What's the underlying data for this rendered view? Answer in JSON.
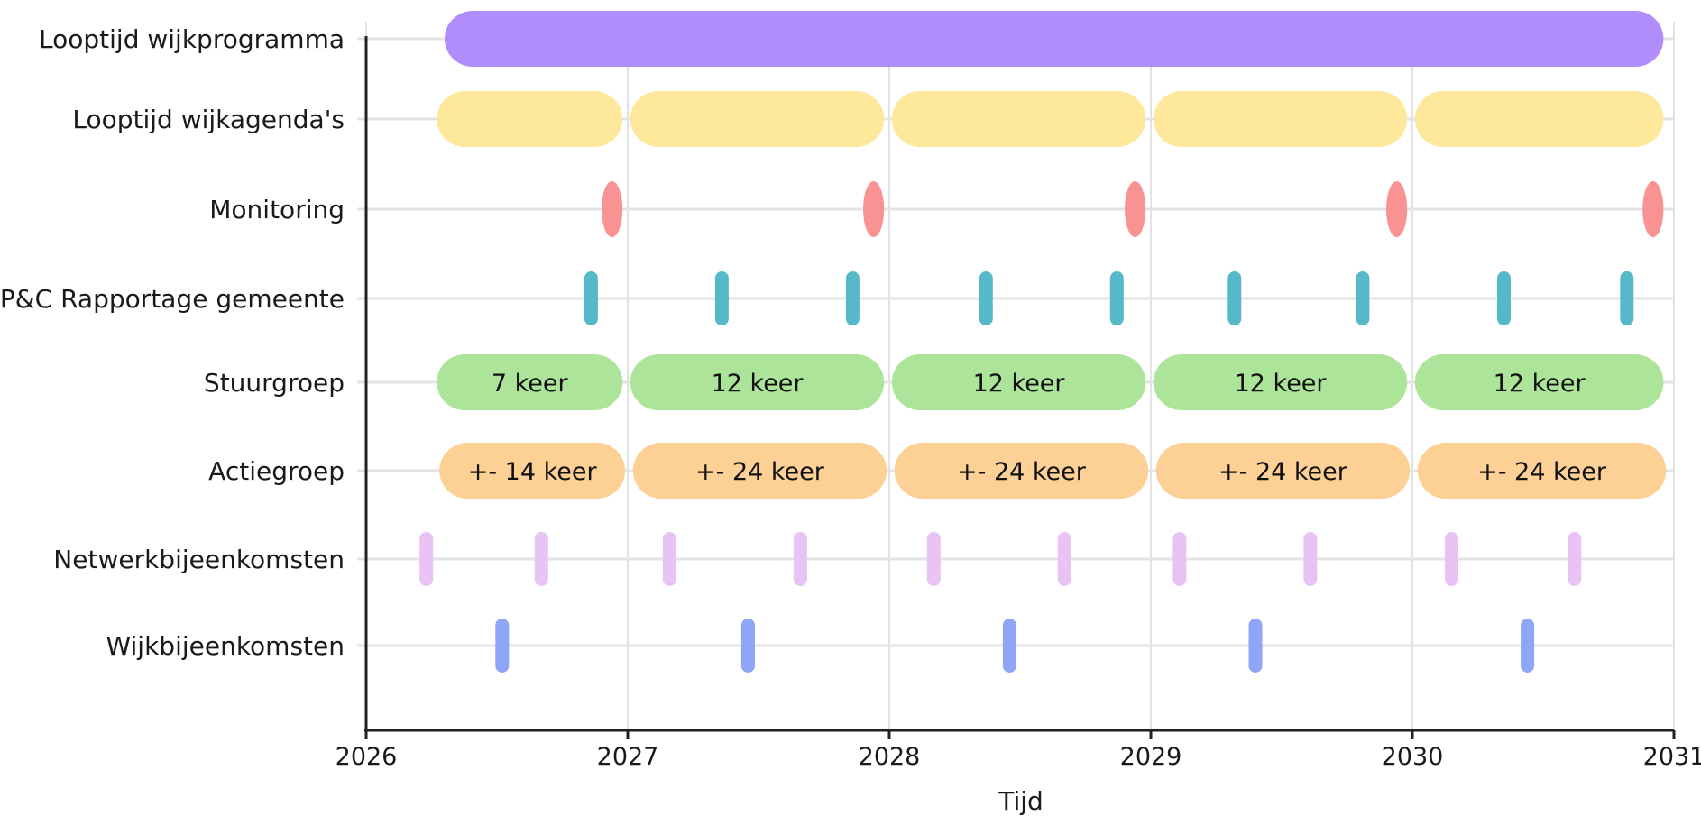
{
  "chart_data": {
    "type": "timeline",
    "xlabel": "Tijd",
    "xlim": [
      2026,
      2031
    ],
    "x_ticks": [
      2026,
      2027,
      2028,
      2029,
      2030,
      2031
    ],
    "grid": true,
    "categories": [
      "Looptijd wijkprogramma",
      "Looptijd wijkagenda's",
      "Monitoring",
      "P&C Rapportage gemeente",
      "Stuurgroep",
      "Actiegroep",
      "Netwerkbijeenkomsten",
      "Wijkbijeenkomsten"
    ],
    "colors": {
      "Looptijd wijkprogramma": "#ad87fb",
      "Looptijd wijkagenda's": "#fde797",
      "Monitoring": "#f98d8d",
      "P&C Rapportage gemeente": "#56b9c9",
      "Stuurgroep": "#a8e494",
      "Actiegroep": "#fdcf90",
      "Netwerkbijeenkomsten": "#e8c3f4",
      "Wijkbijeenkomsten": "#8ea5f8"
    },
    "series": [
      {
        "name": "Looptijd wijkprogramma",
        "intervals": [
          [
            2026.3,
            2030.96
          ]
        ],
        "labels": [
          ""
        ]
      },
      {
        "name": "Looptijd wijkagenda's",
        "intervals": [
          [
            2026.27,
            2026.98
          ],
          [
            2027.01,
            2027.98
          ],
          [
            2028.01,
            2028.98
          ],
          [
            2029.01,
            2029.98
          ],
          [
            2030.01,
            2030.96
          ]
        ],
        "labels": [
          "",
          "",
          "",
          "",
          ""
        ]
      },
      {
        "name": "Monitoring",
        "intervals": [
          [
            2026.9,
            2026.98
          ],
          [
            2027.9,
            2027.98
          ],
          [
            2028.9,
            2028.98
          ],
          [
            2029.9,
            2029.98
          ],
          [
            2030.88,
            2030.96
          ]
        ],
        "labels": [
          "",
          "",
          "",
          "",
          ""
        ]
      },
      {
        "name": "P&C Rapportage gemeente",
        "points": [
          2026.86,
          2027.36,
          2027.86,
          2028.37,
          2028.87,
          2029.32,
          2029.81,
          2030.35,
          2030.82
        ]
      },
      {
        "name": "Stuurgroep",
        "intervals": [
          [
            2026.27,
            2026.98
          ],
          [
            2027.01,
            2027.98
          ],
          [
            2028.01,
            2028.98
          ],
          [
            2029.01,
            2029.98
          ],
          [
            2030.01,
            2030.96
          ]
        ],
        "labels": [
          "7 keer",
          "12 keer",
          "12 keer",
          "12 keer",
          "12 keer"
        ]
      },
      {
        "name": "Actiegroep",
        "intervals": [
          [
            2026.28,
            2026.99
          ],
          [
            2027.02,
            2027.99
          ],
          [
            2028.02,
            2028.99
          ],
          [
            2029.02,
            2029.99
          ],
          [
            2030.02,
            2030.97
          ]
        ],
        "labels": [
          "+- 14 keer",
          "+- 24 keer",
          "+- 24 keer",
          "+- 24 keer",
          "+- 24 keer"
        ]
      },
      {
        "name": "Netwerkbijeenkomsten",
        "points": [
          2026.23,
          2026.67,
          2027.16,
          2027.66,
          2028.17,
          2028.67,
          2029.11,
          2029.61,
          2030.15,
          2030.62
        ]
      },
      {
        "name": "Wijkbijeenkomsten",
        "points": [
          2026.52,
          2027.46,
          2028.46,
          2029.4,
          2030.44
        ]
      }
    ]
  }
}
